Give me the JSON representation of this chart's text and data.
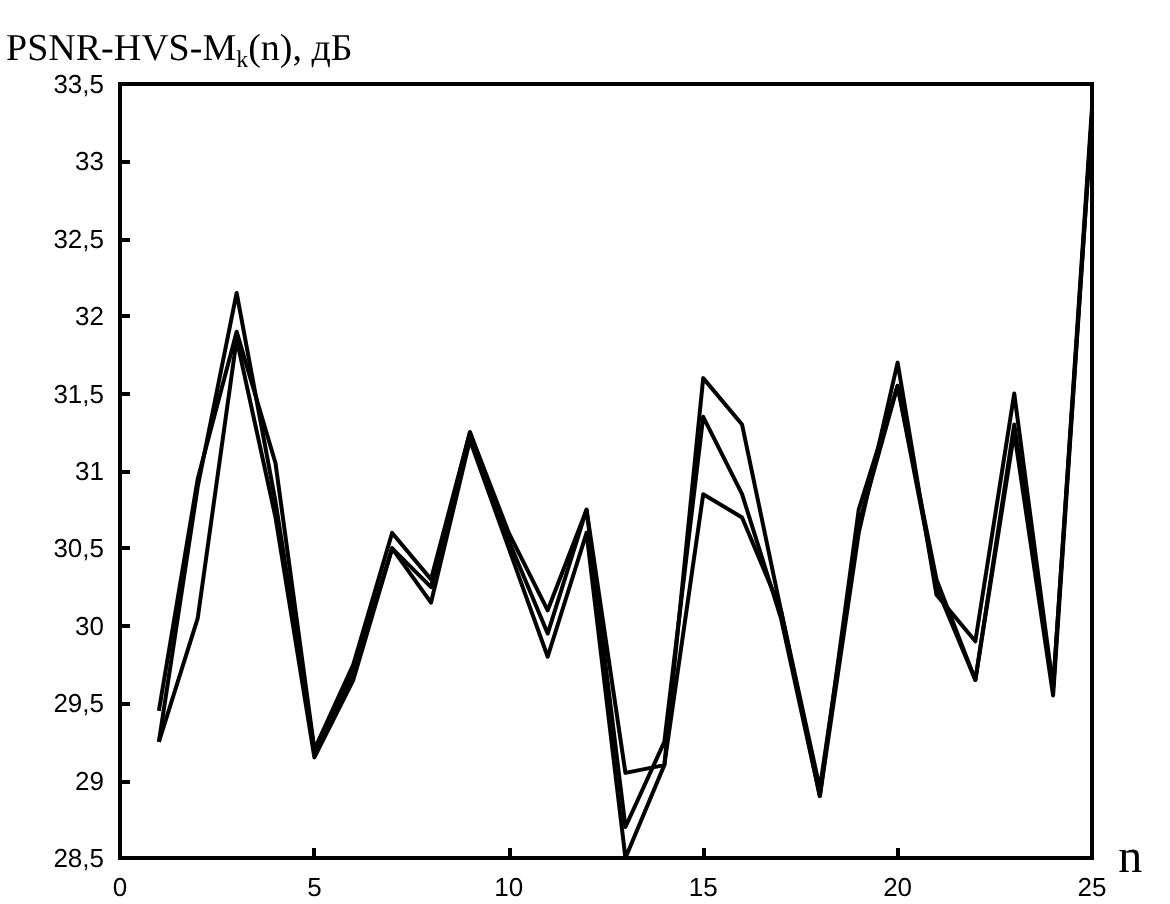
{
  "chart_data": {
    "type": "line",
    "ylabel": "PSNR-HVS-M$_{k}$(n), дБ",
    "xlabel": "n",
    "x": [
      1,
      2,
      3,
      4,
      5,
      6,
      7,
      8,
      9,
      10,
      11,
      12,
      13,
      14,
      15,
      16,
      17,
      18,
      19,
      20,
      21,
      22,
      23,
      24,
      25
    ],
    "series": [
      {
        "color": "#000000",
        "values": [
          29.45,
          30.95,
          31.9,
          31.05,
          29.2,
          29.75,
          30.6,
          30.3,
          31.25,
          30.6,
          30.1,
          30.75,
          29.05,
          29.1,
          31.6,
          31.3,
          30.1,
          28.9,
          30.6,
          31.7,
          30.2,
          29.9,
          31.5,
          29.6,
          33.35
        ]
      },
      {
        "color": "#000000",
        "values": [
          29.25,
          30.9,
          32.15,
          30.8,
          29.2,
          29.7,
          30.5,
          30.25,
          31.25,
          30.55,
          29.95,
          30.75,
          28.7,
          29.25,
          31.35,
          30.85,
          30.05,
          28.9,
          30.75,
          31.55,
          30.3,
          29.65,
          31.3,
          29.6,
          33.3
        ]
      },
      {
        "color": "#000000",
        "values": [
          29.25,
          30.05,
          31.85,
          30.7,
          29.15,
          29.65,
          30.5,
          30.15,
          31.2,
          30.5,
          29.8,
          30.6,
          28.5,
          29.1,
          30.85,
          30.7,
          30.1,
          28.95,
          30.65,
          31.55,
          30.25,
          29.65,
          31.25,
          29.55,
          33.3
        ]
      }
    ],
    "xlim": [
      0,
      25
    ],
    "xticks": [
      0,
      5,
      10,
      15,
      20,
      25
    ],
    "ylim": [
      28.5,
      33.5
    ],
    "yticks": [
      {
        "value": 28.5,
        "label": "28,5"
      },
      29,
      {
        "value": 29.5,
        "label": "29,5"
      },
      30,
      {
        "value": 30.5,
        "label": "30,5"
      },
      31,
      {
        "value": 31.5,
        "label": "31,5"
      },
      32,
      {
        "value": 32.5,
        "label": "32,5"
      },
      33,
      {
        "value": 33.5,
        "label": "33,5"
      }
    ],
    "grid": false,
    "marker": "none",
    "line_style": "solid"
  }
}
